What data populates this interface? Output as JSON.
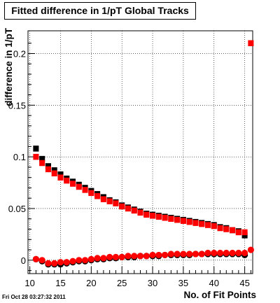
{
  "title": "Fitted difference in 1/pT  Global Tracks",
  "timestamp": "Fri Oct 28 03:27:32 2011",
  "chart_data": {
    "type": "scatter",
    "title": "Fitted difference in 1/pT  Global Tracks",
    "xlabel": "No. of Fit Points",
    "ylabel": "difference in 1/pT",
    "xlim": [
      9.7,
      46.3
    ],
    "ylim": [
      -0.013,
      0.222
    ],
    "xticks": [
      10,
      15,
      20,
      25,
      30,
      35,
      40,
      45
    ],
    "yticks": [
      0,
      0.05,
      0.1,
      0.15,
      0.2
    ],
    "ytick_labels": [
      "0",
      "0.05",
      "0.1",
      "0.15",
      "0.2"
    ],
    "grid": true,
    "series": [
      {
        "color": "#000000",
        "marker": "square",
        "x": [
          11,
          12,
          13,
          14,
          15,
          16,
          17,
          18,
          19,
          20,
          21,
          22,
          23,
          24,
          25,
          26,
          27,
          28,
          29,
          30,
          31,
          32,
          33,
          34,
          35,
          36,
          37,
          38,
          39,
          40,
          41,
          42,
          43,
          44,
          45
        ],
        "y": [
          0.108,
          0.098,
          0.091,
          0.087,
          0.083,
          0.079,
          0.076,
          0.073,
          0.07,
          0.067,
          0.064,
          0.061,
          0.058,
          0.056,
          0.053,
          0.051,
          0.049,
          0.047,
          0.045,
          0.044,
          0.043,
          0.042,
          0.041,
          0.04,
          0.039,
          0.038,
          0.037,
          0.036,
          0.035,
          0.034,
          0.032,
          0.031,
          0.029,
          0.028,
          0.024
        ]
      },
      {
        "color": "#ff0000",
        "marker": "square",
        "x": [
          11,
          12,
          13,
          14,
          15,
          16,
          17,
          18,
          19,
          20,
          21,
          22,
          23,
          24,
          25,
          26,
          27,
          28,
          29,
          30,
          31,
          32,
          33,
          34,
          35,
          36,
          37,
          38,
          39,
          40,
          41,
          42,
          43,
          44,
          45,
          46
        ],
        "y": [
          0.1,
          0.094,
          0.088,
          0.084,
          0.08,
          0.077,
          0.074,
          0.071,
          0.068,
          0.065,
          0.062,
          0.059,
          0.057,
          0.055,
          0.052,
          0.05,
          0.048,
          0.046,
          0.044,
          0.043,
          0.042,
          0.041,
          0.04,
          0.039,
          0.038,
          0.037,
          0.036,
          0.035,
          0.034,
          0.033,
          0.031,
          0.03,
          0.029,
          0.027,
          0.027,
          0.21
        ]
      },
      {
        "color": "#000000",
        "marker": "circle",
        "x": [
          11,
          12,
          13,
          14,
          15,
          16,
          17,
          18,
          19,
          20,
          21,
          22,
          23,
          24,
          25,
          26,
          27,
          28,
          29,
          30,
          31,
          32,
          33,
          34,
          35,
          36,
          37,
          38,
          39,
          40,
          41,
          42,
          43,
          44,
          45
        ],
        "y": [
          0.001,
          -0.001,
          -0.004,
          -0.004,
          -0.004,
          -0.003,
          -0.002,
          -0.001,
          -0.001,
          0.0,
          0.001,
          0.001,
          0.002,
          0.002,
          0.003,
          0.003,
          0.003,
          0.004,
          0.004,
          0.004,
          0.004,
          0.005,
          0.005,
          0.005,
          0.005,
          0.005,
          0.006,
          0.006,
          0.006,
          0.006,
          0.006,
          0.006,
          0.006,
          0.006,
          0.005
        ]
      },
      {
        "color": "#ff0000",
        "marker": "circle",
        "x": [
          11,
          12,
          13,
          14,
          15,
          16,
          17,
          18,
          19,
          20,
          21,
          22,
          23,
          24,
          25,
          26,
          27,
          28,
          29,
          30,
          31,
          32,
          33,
          34,
          35,
          36,
          37,
          38,
          39,
          40,
          41,
          42,
          43,
          44,
          45,
          46
        ],
        "y": [
          0.001,
          0.0,
          -0.003,
          -0.003,
          -0.002,
          -0.002,
          -0.001,
          0.0,
          0.0,
          0.001,
          0.002,
          0.002,
          0.003,
          0.003,
          0.003,
          0.004,
          0.004,
          0.004,
          0.004,
          0.005,
          0.005,
          0.005,
          0.006,
          0.006,
          0.006,
          0.006,
          0.006,
          0.006,
          0.007,
          0.007,
          0.007,
          0.007,
          0.007,
          0.007,
          0.007,
          0.01
        ]
      }
    ]
  }
}
